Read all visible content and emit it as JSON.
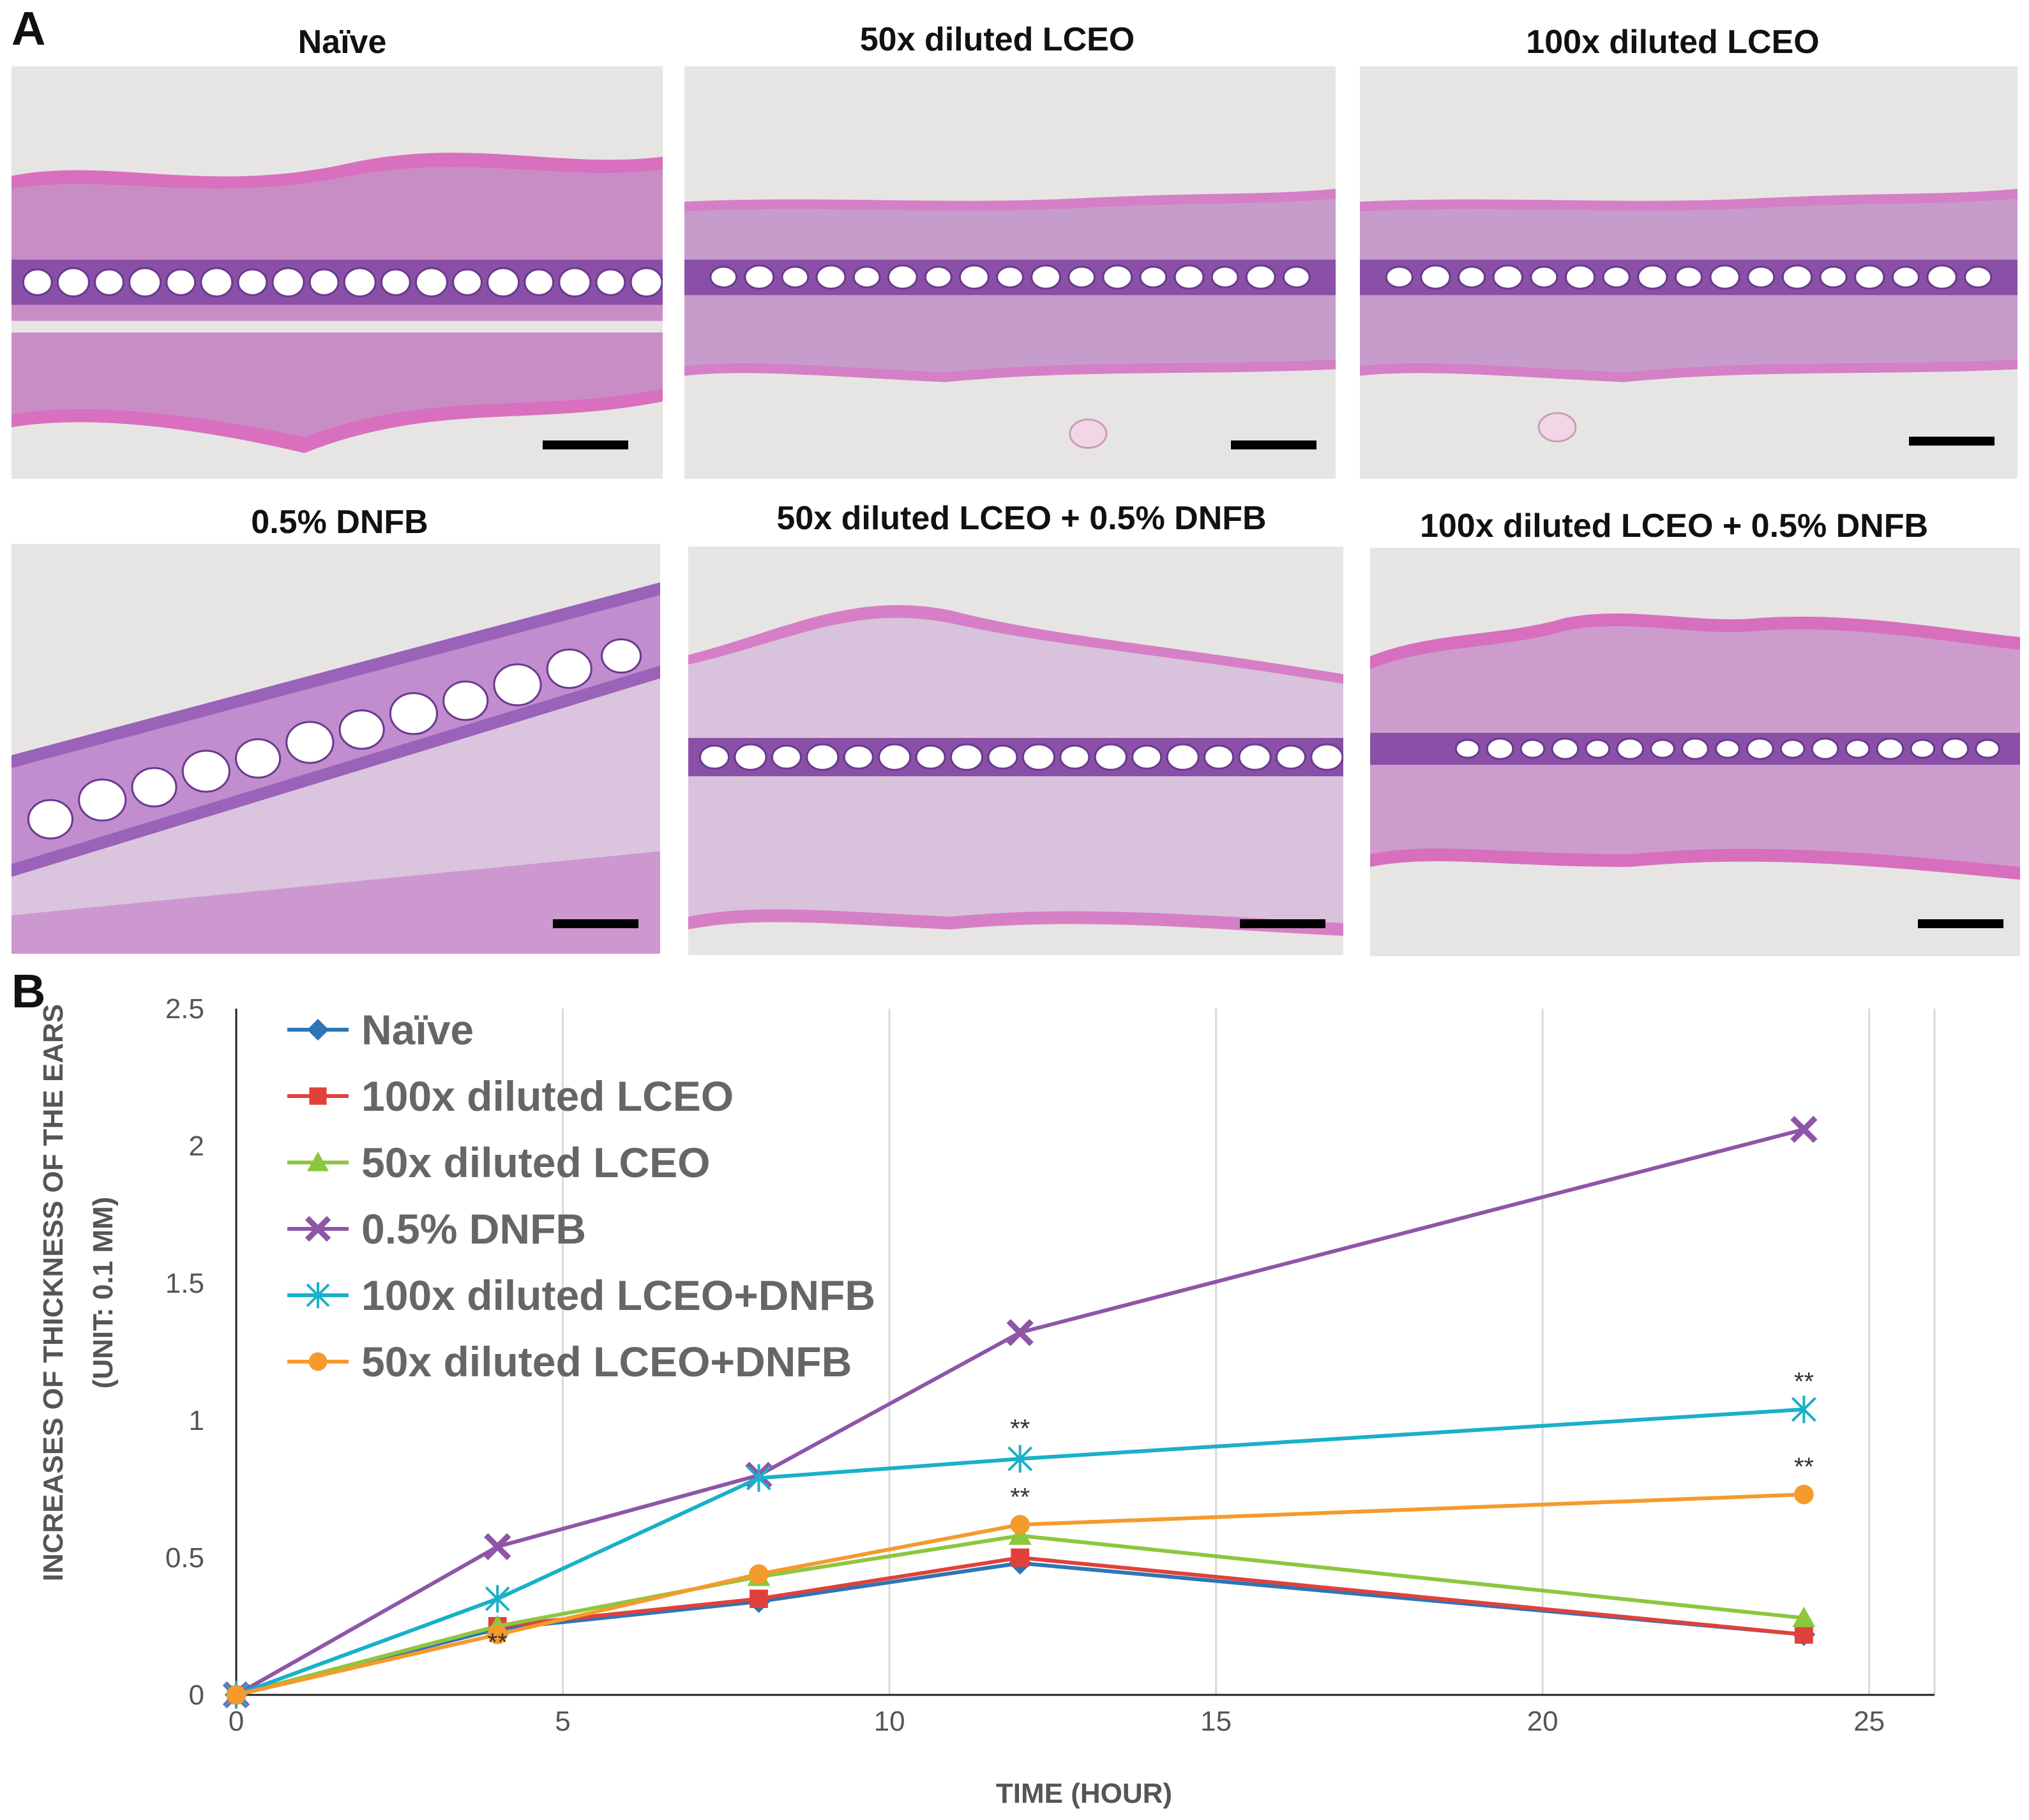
{
  "panel_a": {
    "letter": "A",
    "images": [
      {
        "title": "Naïve"
      },
      {
        "title": "50x diluted LCEO"
      },
      {
        "title": "100x diluted LCEO"
      },
      {
        "title": "0.5% DNFB"
      },
      {
        "title": "50x diluted LCEO + 0.5% DNFB"
      },
      {
        "title": "100x diluted LCEO + 0.5% DNFB"
      }
    ]
  },
  "panel_b": {
    "letter": "B"
  },
  "chart_data": {
    "type": "line",
    "title": "",
    "xlabel": "TIME (HOUR)",
    "ylabel": "INCREASES OF THICKNESS OF THE EARS",
    "ylabel_sub": "(UNIT: 0.1 MM)",
    "xlim": [
      0,
      26
    ],
    "ylim": [
      0,
      2.5
    ],
    "xticks": [
      0,
      5,
      10,
      15,
      20,
      25
    ],
    "yticks": [
      0,
      0.5,
      1,
      1.5,
      2,
      2.5
    ],
    "grid": "vertical",
    "legend_position": "top-left",
    "x": [
      0,
      4,
      8,
      12,
      24
    ],
    "series": [
      {
        "name": "Naïve",
        "color": "#2e75b6",
        "marker": "diamond",
        "values": [
          0,
          0.24,
          0.34,
          0.48,
          0.22
        ]
      },
      {
        "name": "100x diluted LCEO",
        "color": "#e0413b",
        "marker": "square",
        "values": [
          0,
          0.25,
          0.35,
          0.5,
          0.22
        ]
      },
      {
        "name": "50x diluted LCEO",
        "color": "#8dc63f",
        "marker": "triangle",
        "values": [
          0,
          0.25,
          0.43,
          0.58,
          0.28
        ]
      },
      {
        "name": "0.5% DNFB",
        "color": "#8e55a8",
        "marker": "x",
        "values": [
          0,
          0.54,
          0.8,
          1.32,
          2.06
        ]
      },
      {
        "name": "100x diluted LCEO+DNFB",
        "color": "#1ab0c8",
        "marker": "star",
        "values": [
          0,
          0.35,
          0.79,
          0.86,
          1.04
        ]
      },
      {
        "name": "50x diluted LCEO+DNFB",
        "color": "#f59a2c",
        "marker": "circle",
        "values": [
          0,
          0.22,
          0.44,
          0.62,
          0.73
        ]
      }
    ],
    "annotations": [
      {
        "text": "**",
        "x": 4,
        "y": 0.16
      },
      {
        "text": "**",
        "x": 12,
        "y": 0.94
      },
      {
        "text": "**",
        "x": 12,
        "y": 0.69
      },
      {
        "text": "**",
        "x": 24,
        "y": 1.11
      },
      {
        "text": "**",
        "x": 24,
        "y": 0.8
      }
    ]
  }
}
